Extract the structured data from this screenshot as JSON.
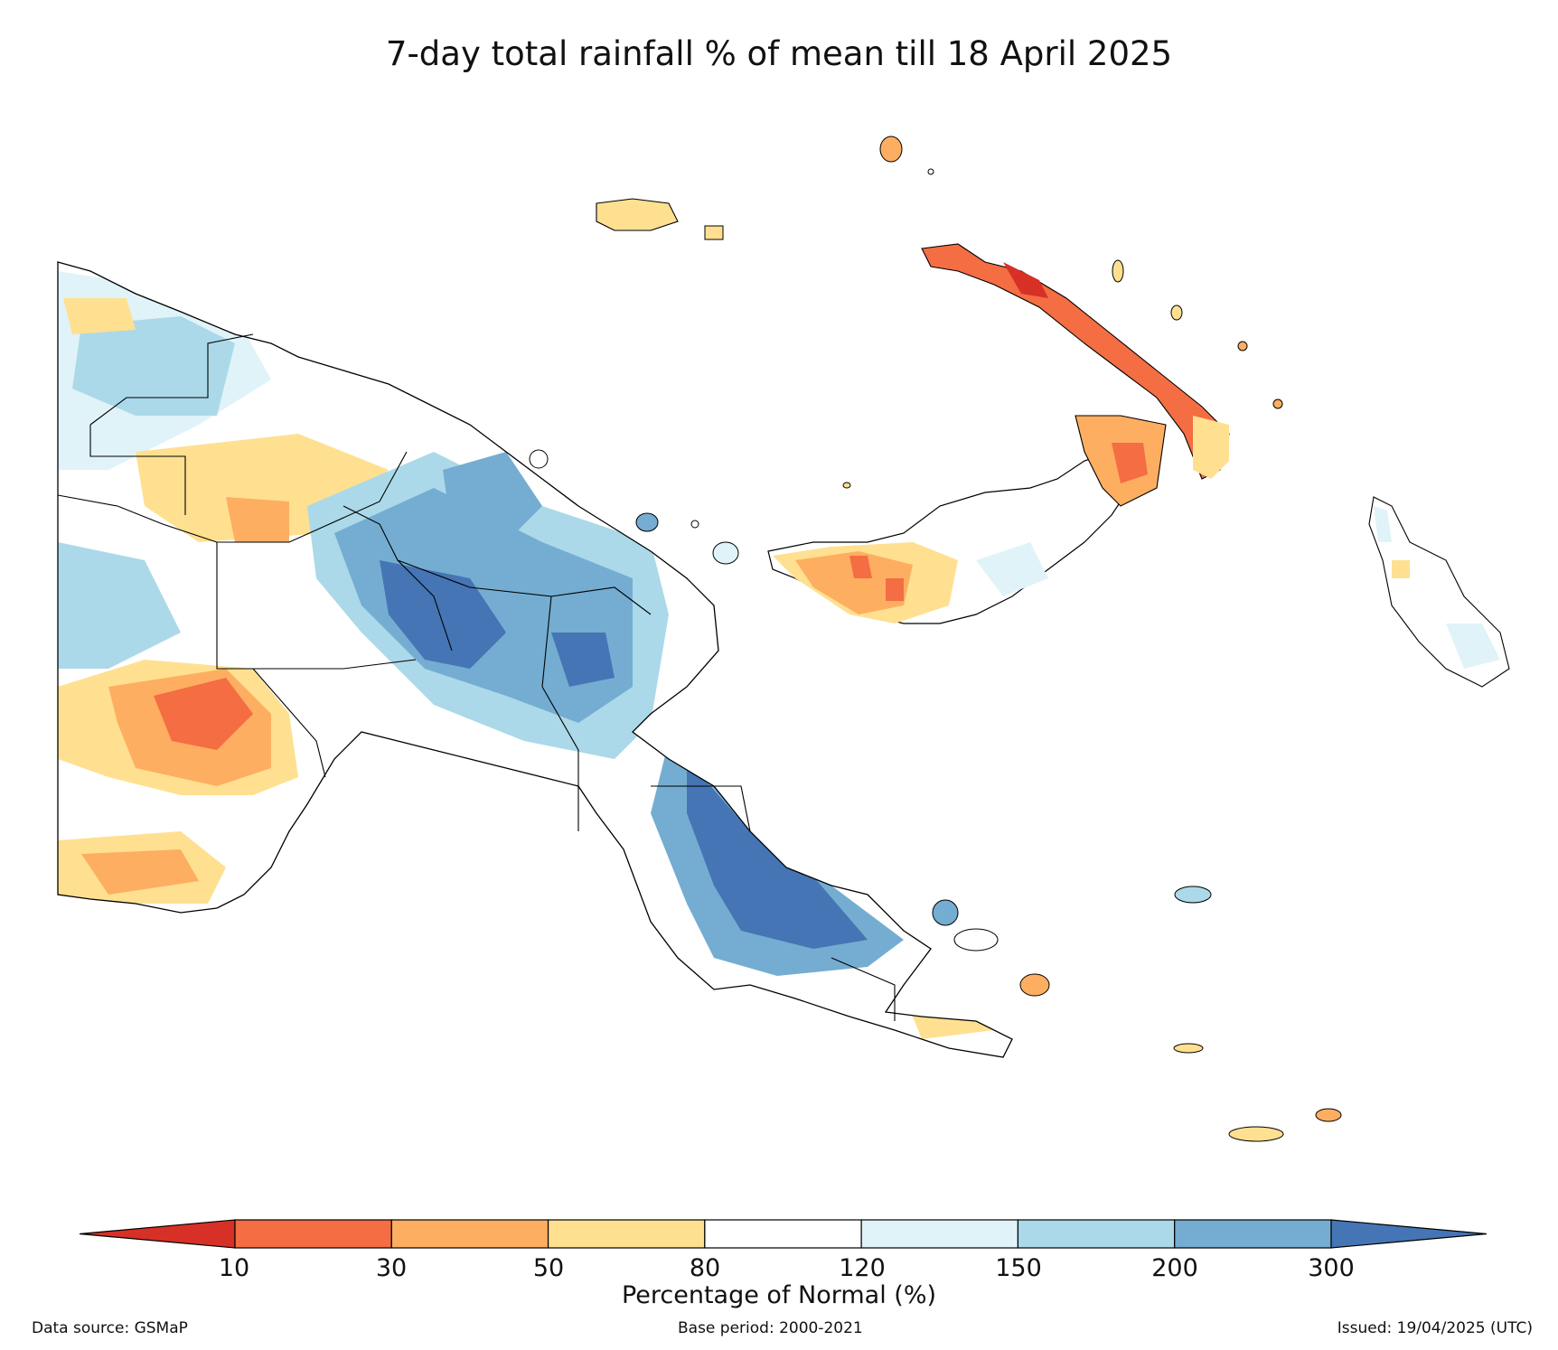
{
  "title": "7-day total rainfall % of mean till 18 April 2025",
  "legend": {
    "label": "Percentage of Normal (%)",
    "ticks": [
      "10",
      "30",
      "50",
      "80",
      "120",
      "150",
      "200",
      "300"
    ],
    "bins": [
      {
        "range": "<10",
        "color": "#d73027"
      },
      {
        "range": "10-30",
        "color": "#f46d43"
      },
      {
        "range": "30-50",
        "color": "#fdae61"
      },
      {
        "range": "50-80",
        "color": "#fee090"
      },
      {
        "range": "80-120",
        "color": "#ffffff"
      },
      {
        "range": "120-150",
        "color": "#e0f3f8"
      },
      {
        "range": "150-200",
        "color": "#abd9e9"
      },
      {
        "range": "200-300",
        "color": "#74add1"
      },
      {
        "range": ">300",
        "color": "#4575b4"
      }
    ]
  },
  "footer": {
    "source": "Data source: GSMaP",
    "base": "Base period: 2000-2021",
    "issued": "Issued: 19/04/2025 (UTC)"
  }
}
